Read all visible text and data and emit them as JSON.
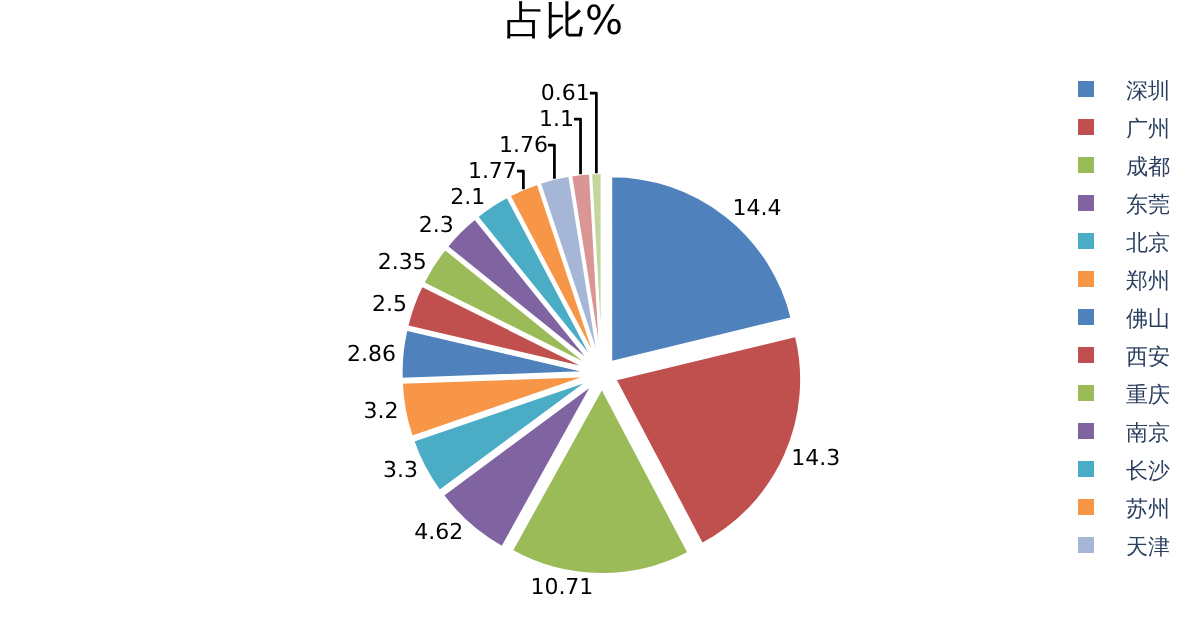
{
  "chart_data": {
    "type": "pie",
    "title": "占比%",
    "categories": [
      "深圳",
      "广州",
      "成都",
      "东莞",
      "北京",
      "郑州",
      "佛山",
      "西安",
      "重庆",
      "南京",
      "长沙",
      "苏州",
      "天津",
      null,
      null
    ],
    "values": [
      14.4,
      14.3,
      10.71,
      4.62,
      3.3,
      3.2,
      2.86,
      2.5,
      2.35,
      2.3,
      2.1,
      1.77,
      1.76,
      1.1,
      0.61
    ],
    "colors": [
      "#4f81bd",
      "#c0504d",
      "#9bbb59",
      "#8064a2",
      "#4bacc6",
      "#f79646",
      "#4f81bd",
      "#c0504d",
      "#9bbb59",
      "#8064a2",
      "#4bacc6",
      "#f79646",
      "#a5b6d6",
      "#d99694",
      "#c3d69b"
    ],
    "data_labels": true,
    "legend": "right"
  }
}
